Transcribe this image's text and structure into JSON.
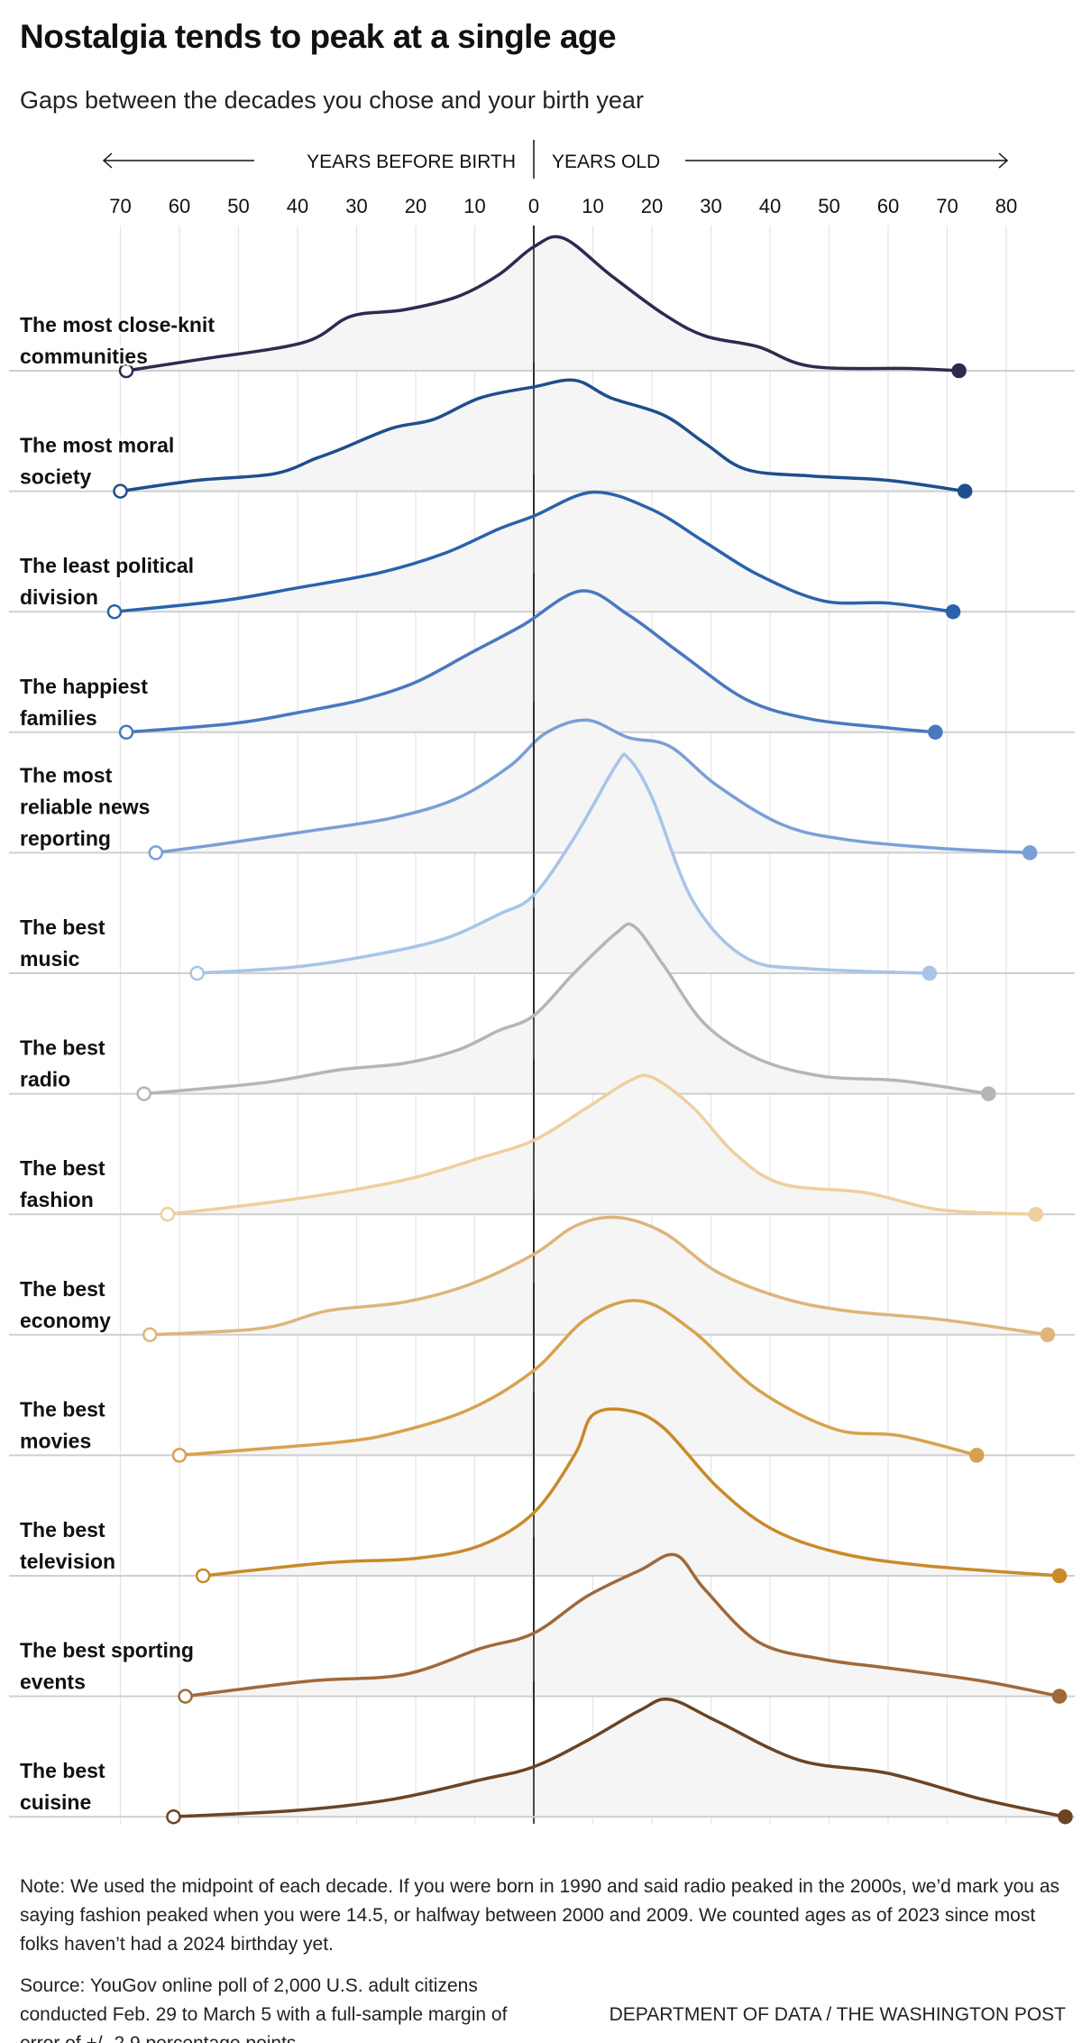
{
  "title": "Nostalgia tends to peak at a single age",
  "subtitle": "Gaps between the decades you chose and your birth year",
  "note": "Note: We used the midpoint of each decade. If you were born in 1990 and said radio peaked in the 2000s, we’d mark you as saying fashion peaked when you were 14.5, or halfway between 2000 and 2009. We counted ages as of 2023 since most folks haven’t had a 2024 birthday yet.",
  "source": "Source: YouGov online poll of 2,000 U.S. adult citizens conducted Feb. 29 to March 5 with a full-sample margin of error of +/- 2.9 percentage points",
  "credit": "DEPARTMENT OF DATA / THE WASHINGTON POST",
  "chart_data": {
    "type": "area",
    "subtype": "ridgeline density",
    "axis_left_label": "YEARS BEFORE BIRTH",
    "axis_right_label": "YEARS OLD",
    "x_tick_labels": [
      "70",
      "60",
      "50",
      "40",
      "30",
      "20",
      "10",
      "0",
      "10",
      "20",
      "30",
      "40",
      "50",
      "60",
      "70",
      "80"
    ],
    "x_ticks": [
      -70,
      -60,
      -50,
      -40,
      -30,
      -20,
      -10,
      0,
      10,
      20,
      30,
      40,
      50,
      60,
      70,
      80
    ],
    "xlim": [
      -72,
      92
    ],
    "grid": true,
    "y_units": "relative density (tallest peak ≈ 100)",
    "series": [
      {
        "name": "The most close-knit communities",
        "lines": [
          "The most close-knit",
          "communities"
        ],
        "color": "#2e2a4f",
        "points": [
          [
            -69,
            0
          ],
          [
            -57,
            5
          ],
          [
            -39,
            13
          ],
          [
            -31,
            25
          ],
          [
            -22,
            28
          ],
          [
            -13,
            34
          ],
          [
            -6,
            44
          ],
          [
            0,
            57
          ],
          [
            5,
            61
          ],
          [
            13,
            44
          ],
          [
            22,
            26
          ],
          [
            29,
            16
          ],
          [
            38,
            11
          ],
          [
            47,
            2
          ],
          [
            64,
            1
          ],
          [
            72,
            0
          ]
        ]
      },
      {
        "name": "The most moral society",
        "lines": [
          "The most moral",
          "society"
        ],
        "color": "#1f4e8c",
        "points": [
          [
            -70,
            0
          ],
          [
            -57,
            5
          ],
          [
            -44,
            8
          ],
          [
            -37,
            15
          ],
          [
            -33,
            19
          ],
          [
            -24,
            29
          ],
          [
            -17,
            33
          ],
          [
            -9,
            43
          ],
          [
            0,
            48
          ],
          [
            7,
            51
          ],
          [
            13,
            43
          ],
          [
            22,
            35
          ],
          [
            29,
            22
          ],
          [
            36,
            10
          ],
          [
            47,
            7
          ],
          [
            60,
            5
          ],
          [
            73,
            0
          ]
        ]
      },
      {
        "name": "The least political division",
        "lines": [
          "The least political",
          "division"
        ],
        "color": "#2a62ad",
        "points": [
          [
            -71,
            0
          ],
          [
            -53,
            5
          ],
          [
            -40,
            11
          ],
          [
            -26,
            18
          ],
          [
            -15,
            27
          ],
          [
            -6,
            38
          ],
          [
            0,
            44
          ],
          [
            10,
            55
          ],
          [
            20,
            47
          ],
          [
            29,
            32
          ],
          [
            38,
            17
          ],
          [
            49,
            5
          ],
          [
            60,
            4
          ],
          [
            71,
            0
          ]
        ]
      },
      {
        "name": "The happiest families",
        "lines": [
          "The happiest",
          "families"
        ],
        "color": "#4a78c0",
        "points": [
          [
            -69,
            0
          ],
          [
            -51,
            4
          ],
          [
            -40,
            9
          ],
          [
            -29,
            15
          ],
          [
            -20,
            23
          ],
          [
            -11,
            36
          ],
          [
            -2,
            49
          ],
          [
            8,
            65
          ],
          [
            16,
            54
          ],
          [
            25,
            36
          ],
          [
            36,
            15
          ],
          [
            47,
            6
          ],
          [
            60,
            2
          ],
          [
            68,
            0
          ]
        ]
      },
      {
        "name": "The most reliable news reporting",
        "lines": [
          "The most",
          "reliable news",
          "reporting"
        ],
        "color": "#7a9fd6",
        "points": [
          [
            -64,
            0
          ],
          [
            -53,
            4
          ],
          [
            -38,
            10
          ],
          [
            -24,
            16
          ],
          [
            -13,
            25
          ],
          [
            -4,
            40
          ],
          [
            2,
            55
          ],
          [
            9,
            61
          ],
          [
            16,
            53
          ],
          [
            23,
            49
          ],
          [
            31,
            31
          ],
          [
            42,
            13
          ],
          [
            53,
            6
          ],
          [
            69,
            2
          ],
          [
            84,
            0
          ]
        ]
      },
      {
        "name": "The best music",
        "lines": [
          "The best",
          "music"
        ],
        "color": "#a8c4e8",
        "points": [
          [
            -57,
            0
          ],
          [
            -40,
            3
          ],
          [
            -26,
            9
          ],
          [
            -15,
            16
          ],
          [
            -6,
            27
          ],
          [
            0,
            36
          ],
          [
            7,
            63
          ],
          [
            14,
            96
          ],
          [
            16,
            99
          ],
          [
            20,
            81
          ],
          [
            27,
            33
          ],
          [
            36,
            7
          ],
          [
            47,
            2
          ],
          [
            67,
            0
          ]
        ]
      },
      {
        "name": "The best radio",
        "lines": [
          "The best",
          "radio"
        ],
        "color": "#b5b5b5",
        "points": [
          [
            -66,
            0
          ],
          [
            -46,
            5
          ],
          [
            -33,
            11
          ],
          [
            -22,
            14
          ],
          [
            -13,
            20
          ],
          [
            -6,
            29
          ],
          [
            0,
            36
          ],
          [
            7,
            56
          ],
          [
            14,
            74
          ],
          [
            17,
            77
          ],
          [
            22,
            59
          ],
          [
            29,
            32
          ],
          [
            38,
            16
          ],
          [
            49,
            8
          ],
          [
            62,
            6
          ],
          [
            77,
            0
          ]
        ]
      },
      {
        "name": "The best fashion",
        "lines": [
          "The best",
          "fashion"
        ],
        "color": "#efcf9f",
        "points": [
          [
            -62,
            0
          ],
          [
            -46,
            5
          ],
          [
            -31,
            11
          ],
          [
            -20,
            17
          ],
          [
            -9,
            26
          ],
          [
            0,
            34
          ],
          [
            9,
            49
          ],
          [
            16,
            61
          ],
          [
            20,
            63
          ],
          [
            27,
            49
          ],
          [
            34,
            28
          ],
          [
            42,
            14
          ],
          [
            56,
            10
          ],
          [
            69,
            2
          ],
          [
            85,
            0
          ]
        ]
      },
      {
        "name": "The best economy",
        "lines": [
          "The best",
          "economy"
        ],
        "color": "#deb57a",
        "points": [
          [
            -65,
            0
          ],
          [
            -46,
            3
          ],
          [
            -35,
            11
          ],
          [
            -22,
            15
          ],
          [
            -11,
            23
          ],
          [
            0,
            37
          ],
          [
            7,
            50
          ],
          [
            14,
            54
          ],
          [
            22,
            47
          ],
          [
            31,
            29
          ],
          [
            42,
            17
          ],
          [
            53,
            11
          ],
          [
            69,
            7
          ],
          [
            87,
            0
          ]
        ]
      },
      {
        "name": "The best movies",
        "lines": [
          "The best",
          "movies"
        ],
        "color": "#d7a24d",
        "points": [
          [
            -60,
            0
          ],
          [
            -46,
            3
          ],
          [
            -33,
            6
          ],
          [
            -24,
            10
          ],
          [
            -11,
            21
          ],
          [
            0,
            39
          ],
          [
            9,
            63
          ],
          [
            18,
            71
          ],
          [
            27,
            57
          ],
          [
            38,
            30
          ],
          [
            51,
            12
          ],
          [
            62,
            9
          ],
          [
            75,
            0
          ]
        ]
      },
      {
        "name": "The best television",
        "lines": [
          "The best",
          "television"
        ],
        "color": "#c98a2a",
        "points": [
          [
            -56,
            0
          ],
          [
            -35,
            6
          ],
          [
            -20,
            8
          ],
          [
            -9,
            14
          ],
          [
            0,
            29
          ],
          [
            7,
            56
          ],
          [
            10,
            74
          ],
          [
            16,
            76
          ],
          [
            22,
            68
          ],
          [
            31,
            41
          ],
          [
            40,
            22
          ],
          [
            51,
            11
          ],
          [
            65,
            5
          ],
          [
            89,
            0
          ]
        ]
      },
      {
        "name": "The best sporting events",
        "lines": [
          "The best sporting",
          "events"
        ],
        "color": "#a0693a",
        "points": [
          [
            -59,
            0
          ],
          [
            -38,
            7
          ],
          [
            -22,
            10
          ],
          [
            -9,
            22
          ],
          [
            0,
            29
          ],
          [
            9,
            46
          ],
          [
            18,
            58
          ],
          [
            24,
            65
          ],
          [
            29,
            49
          ],
          [
            38,
            25
          ],
          [
            49,
            17
          ],
          [
            60,
            13
          ],
          [
            76,
            7
          ],
          [
            89,
            0
          ]
        ]
      },
      {
        "name": "The best cuisine",
        "lines": [
          "The best",
          "cuisine"
        ],
        "color": "#6b4423",
        "points": [
          [
            -61,
            0
          ],
          [
            -40,
            3
          ],
          [
            -24,
            8
          ],
          [
            -9,
            17
          ],
          [
            0,
            23
          ],
          [
            9,
            35
          ],
          [
            18,
            49
          ],
          [
            23,
            54
          ],
          [
            31,
            44
          ],
          [
            45,
            26
          ],
          [
            60,
            20
          ],
          [
            76,
            8
          ],
          [
            90,
            0
          ]
        ]
      }
    ]
  }
}
